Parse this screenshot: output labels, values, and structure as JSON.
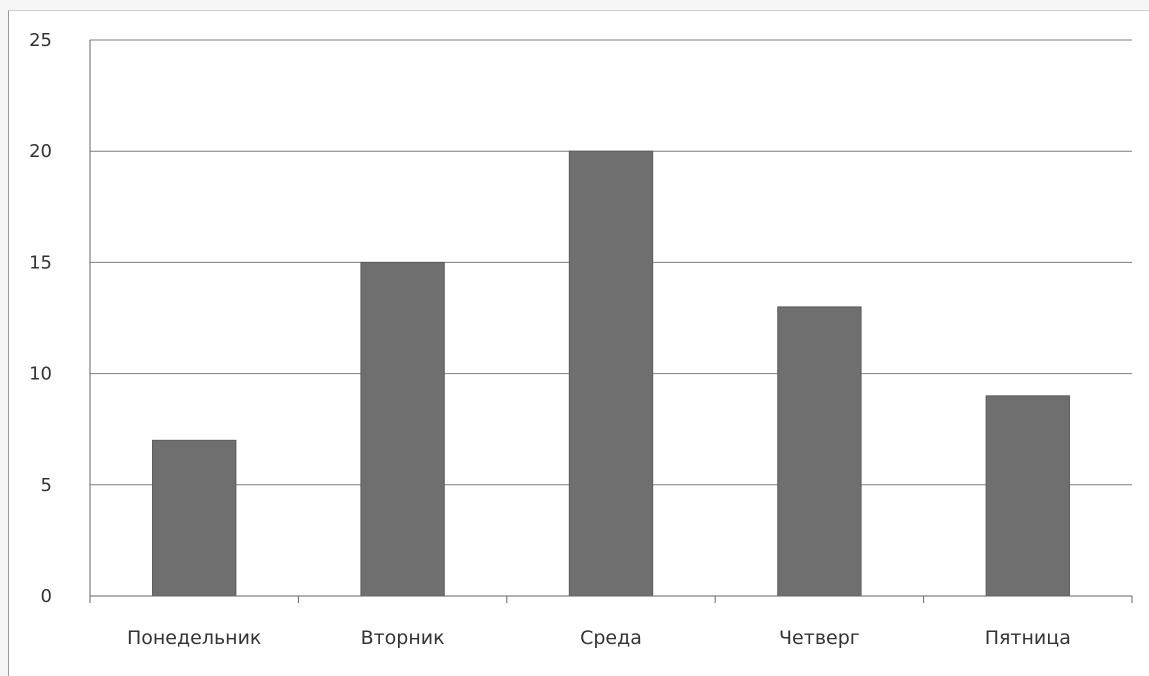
{
  "chart_data": {
    "type": "bar",
    "title": "",
    "xlabel": "",
    "ylabel": "",
    "categories": [
      "Понедельник",
      "Вторник",
      "Среда",
      "Четверг",
      "Пятница"
    ],
    "values": [
      7,
      15,
      20,
      13,
      9
    ],
    "ylim": [
      0,
      25
    ],
    "yticks": [
      0,
      5,
      10,
      15,
      20,
      25
    ],
    "grid": true,
    "legend": "none",
    "colors": {
      "bar": "#6f6f6f",
      "grid": "#7f7f7f",
      "text": "#333333"
    }
  }
}
